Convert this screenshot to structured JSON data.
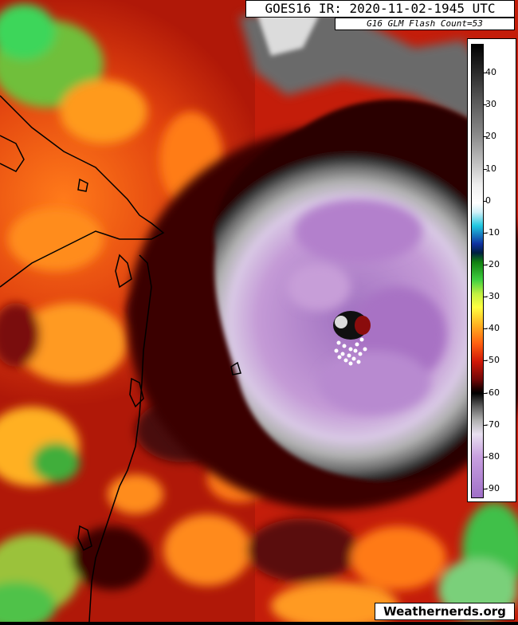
{
  "header": {
    "title": "GOES16 IR: 2020-11-02-1945 UTC",
    "flash_count": "G16 GLM Flash Count=53"
  },
  "legend": {
    "ticks": [
      "40",
      "30",
      "20",
      "10",
      "0",
      "-10",
      "-20",
      "-30",
      "-40",
      "-50",
      "-60",
      "-70",
      "-80",
      "-90"
    ],
    "tick_values": [
      40,
      30,
      20,
      10,
      0,
      -10,
      -20,
      -30,
      -40,
      -50,
      -60,
      -70,
      -80,
      -90
    ],
    "range": [
      -93,
      49
    ]
  },
  "footer": {
    "credit": "Weathernerds.org"
  },
  "colors": {
    "warm_background": "#c81e0a",
    "cold_cloud_top": "#b98ad0",
    "eye": "#7a0a0a",
    "lightning": "#ffffff",
    "coastline": "#000000"
  }
}
